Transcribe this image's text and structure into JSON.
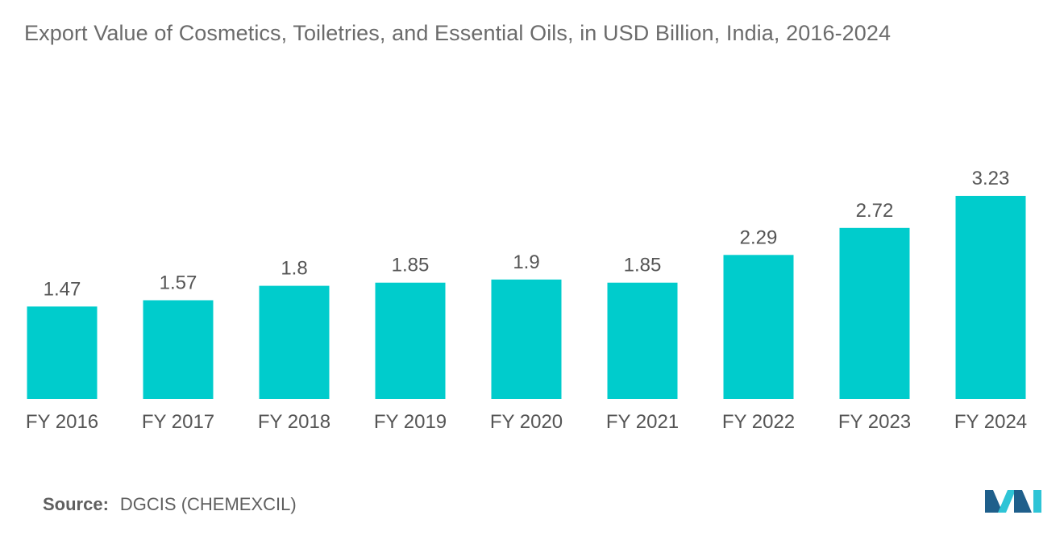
{
  "colors": {
    "bar": "#00cccc",
    "text": "#555555",
    "title": "#6b6b6b",
    "logo_dark": "#1f5f8b",
    "logo_light": "#2ec4d6"
  },
  "logo": {
    "icon": "market-research-logo-icon"
  },
  "source": {
    "label": "Source:",
    "text": "DGCIS (CHEMEXCIL)"
  },
  "chart_data": {
    "type": "bar",
    "title": "Export Value of Cosmetics, Toiletries, and Essential Oils, in USD Billion, India, 2016-2024",
    "categories": [
      "FY 2016",
      "FY 2017",
      "FY 2018",
      "FY 2019",
      "FY 2020",
      "FY 2021",
      "FY 2022",
      "FY 2023",
      "FY 2024"
    ],
    "values": [
      1.47,
      1.57,
      1.8,
      1.85,
      1.9,
      1.85,
      2.29,
      2.72,
      3.23
    ],
    "value_labels": [
      "1.47",
      "1.57",
      "1.8",
      "1.85",
      "1.9",
      "1.85",
      "2.29",
      "2.72",
      "3.23"
    ],
    "xlabel": "",
    "ylabel": "",
    "ylim": [
      0,
      3.23
    ],
    "grid": false,
    "legend": "none"
  }
}
